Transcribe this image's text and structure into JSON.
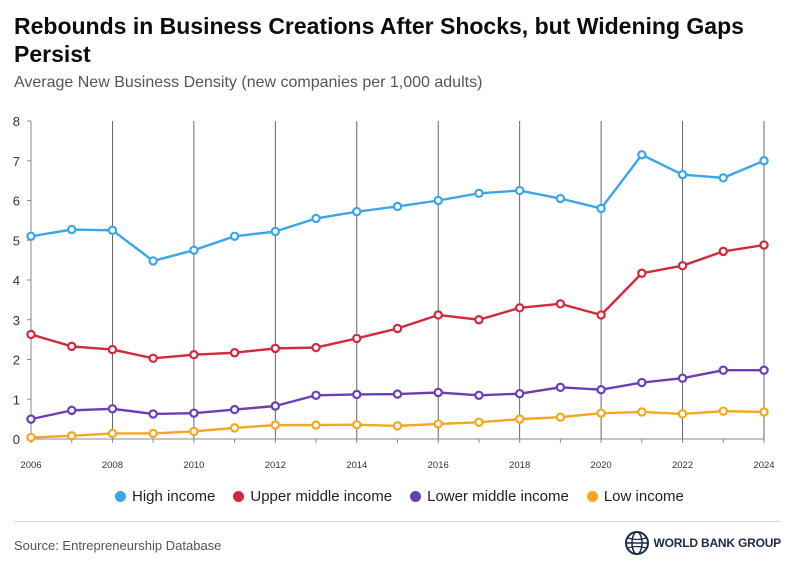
{
  "title": "Rebounds in Business Creations After Shocks, but Widening Gaps Persist",
  "subtitle": "Average New Business Density (new companies per 1,000 adults)",
  "source": "Source: Entrepreneurship Database",
  "logo": {
    "text": "WORLD BANK GROUP",
    "icon": "globe-icon"
  },
  "legend": [
    {
      "label": "High income",
      "color": "#3aa6e8"
    },
    {
      "label": "Upper middle income",
      "color": "#d12a3c"
    },
    {
      "label": "Lower middle income",
      "color": "#6a3fb5"
    },
    {
      "label": "Low income",
      "color": "#f5a623"
    }
  ],
  "chart_data": {
    "type": "line",
    "x": [
      2006,
      2007,
      2008,
      2009,
      2010,
      2011,
      2012,
      2013,
      2014,
      2015,
      2016,
      2017,
      2018,
      2019,
      2020,
      2021,
      2022,
      2023,
      2024
    ],
    "x_tick_labels": [
      "2006",
      "2008",
      "2010",
      "2012",
      "2014",
      "2016",
      "2018",
      "2020",
      "2022",
      "2024"
    ],
    "y_ticks": [
      0,
      1,
      2,
      3,
      4,
      5,
      6,
      7,
      8
    ],
    "ylim": [
      0,
      8
    ],
    "grid": "vertical",
    "legend_position": "bottom",
    "series": [
      {
        "name": "High income",
        "color": "#3aa6e8",
        "values": [
          5.1,
          5.27,
          5.25,
          4.48,
          4.75,
          5.1,
          5.22,
          5.55,
          5.72,
          5.85,
          6.0,
          6.18,
          6.25,
          6.05,
          5.8,
          7.15,
          6.65,
          6.57,
          7.0
        ]
      },
      {
        "name": "Upper middle income",
        "color": "#d12a3c",
        "values": [
          2.63,
          2.33,
          2.25,
          2.03,
          2.12,
          2.17,
          2.28,
          2.3,
          2.53,
          2.78,
          3.12,
          3.0,
          3.3,
          3.4,
          3.12,
          4.17,
          4.36,
          4.72,
          4.88
        ]
      },
      {
        "name": "Lower middle income",
        "color": "#6a3fb5",
        "values": [
          0.5,
          0.72,
          0.76,
          0.63,
          0.65,
          0.74,
          0.83,
          1.1,
          1.12,
          1.13,
          1.17,
          1.1,
          1.14,
          1.3,
          1.24,
          1.42,
          1.53,
          1.73,
          1.73
        ]
      },
      {
        "name": "Low income",
        "color": "#f5a623",
        "values": [
          0.04,
          0.08,
          0.14,
          0.14,
          0.19,
          0.28,
          0.35,
          0.35,
          0.36,
          0.33,
          0.38,
          0.42,
          0.5,
          0.55,
          0.65,
          0.68,
          0.63,
          0.7,
          0.68
        ]
      }
    ]
  }
}
